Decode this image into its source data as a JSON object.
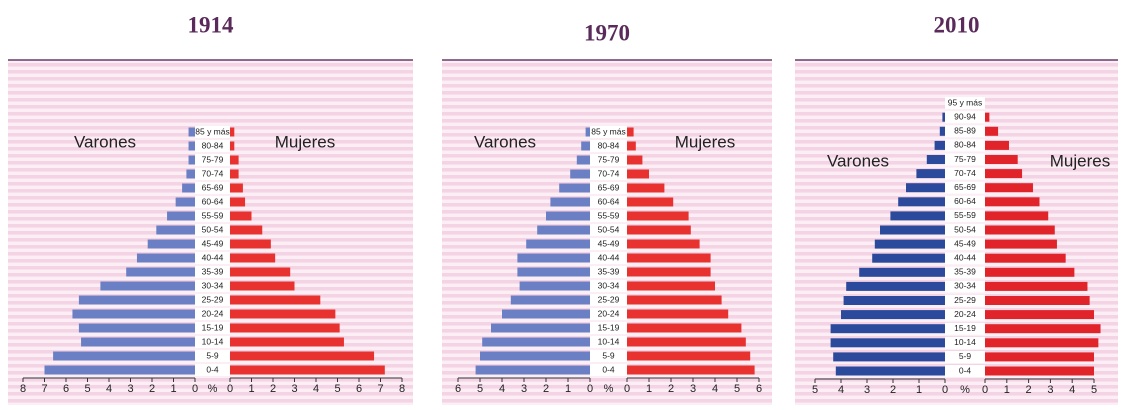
{
  "chart_data": [
    {
      "type": "pyramid",
      "title": "1914",
      "x_label": "%",
      "categories": [
        "0-4",
        "5-9",
        "10-14",
        "15-19",
        "20-24",
        "25-29",
        "30-34",
        "35-39",
        "40-44",
        "45-49",
        "50-54",
        "55-59",
        "60-64",
        "65-69",
        "70-74",
        "75-79",
        "80-84",
        "85 y más"
      ],
      "series": [
        {
          "name": "Varones",
          "color": "#6b7fc4",
          "values": [
            7.0,
            6.6,
            5.3,
            5.4,
            5.7,
            5.4,
            4.4,
            3.2,
            2.7,
            2.2,
            1.8,
            1.3,
            0.9,
            0.6,
            0.4,
            0.3,
            0.3,
            0.3
          ]
        },
        {
          "name": "Mujeres",
          "color": "#e8322f",
          "values": [
            7.2,
            6.7,
            5.3,
            5.1,
            4.9,
            4.2,
            3.0,
            2.8,
            2.1,
            1.9,
            1.5,
            1.0,
            0.7,
            0.6,
            0.4,
            0.4,
            0.2,
            0.2
          ]
        }
      ],
      "xlim": [
        0,
        8
      ],
      "xticks": [
        0,
        1,
        2,
        3,
        4,
        5,
        6,
        7,
        8
      ]
    },
    {
      "type": "pyramid",
      "title": "1970",
      "x_label": "%",
      "categories": [
        "0-4",
        "5-9",
        "10-14",
        "15-19",
        "20-24",
        "25-29",
        "30-34",
        "35-39",
        "40-44",
        "45-49",
        "50-54",
        "55-59",
        "60-64",
        "65-69",
        "70-74",
        "75-79",
        "80-84",
        "85 y más"
      ],
      "series": [
        {
          "name": "Varones",
          "color": "#6b7fc4",
          "values": [
            5.2,
            5.0,
            4.9,
            4.5,
            4.0,
            3.6,
            3.2,
            3.3,
            3.3,
            2.9,
            2.4,
            2.0,
            1.8,
            1.4,
            0.9,
            0.6,
            0.4,
            0.2
          ]
        },
        {
          "name": "Mujeres",
          "color": "#e8322f",
          "values": [
            5.8,
            5.6,
            5.4,
            5.2,
            4.6,
            4.3,
            4.0,
            3.8,
            3.8,
            3.3,
            2.9,
            2.8,
            2.1,
            1.7,
            1.0,
            0.7,
            0.4,
            0.3
          ]
        }
      ],
      "xlim": [
        0,
        6
      ],
      "xticks": [
        0,
        1,
        2,
        3,
        4,
        5,
        6
      ]
    },
    {
      "type": "pyramid",
      "title": "2010",
      "x_label": "%",
      "categories": [
        "0-4",
        "5-9",
        "10-14",
        "15-19",
        "20-24",
        "25-29",
        "30-34",
        "35-39",
        "40-44",
        "45-49",
        "50-54",
        "55-59",
        "60-64",
        "65-69",
        "70-74",
        "75-79",
        "80-84",
        "85-89",
        "90-94",
        "95 y más"
      ],
      "series": [
        {
          "name": "Varones",
          "color": "#2b4a9c",
          "values": [
            4.2,
            4.3,
            4.4,
            4.4,
            4.0,
            3.9,
            3.8,
            3.3,
            2.8,
            2.7,
            2.5,
            2.1,
            1.8,
            1.5,
            1.1,
            0.7,
            0.4,
            0.2,
            0.1,
            0
          ]
        },
        {
          "name": "Mujeres",
          "color": "#e0242a",
          "values": [
            5.0,
            5.0,
            5.2,
            5.3,
            5.0,
            4.8,
            4.7,
            4.1,
            3.7,
            3.3,
            3.2,
            2.9,
            2.5,
            2.2,
            1.7,
            1.5,
            1.1,
            0.6,
            0.2,
            0
          ]
        }
      ],
      "xlim": [
        0,
        5
      ],
      "xticks": [
        0,
        1,
        2,
        3,
        4,
        5
      ]
    }
  ]
}
